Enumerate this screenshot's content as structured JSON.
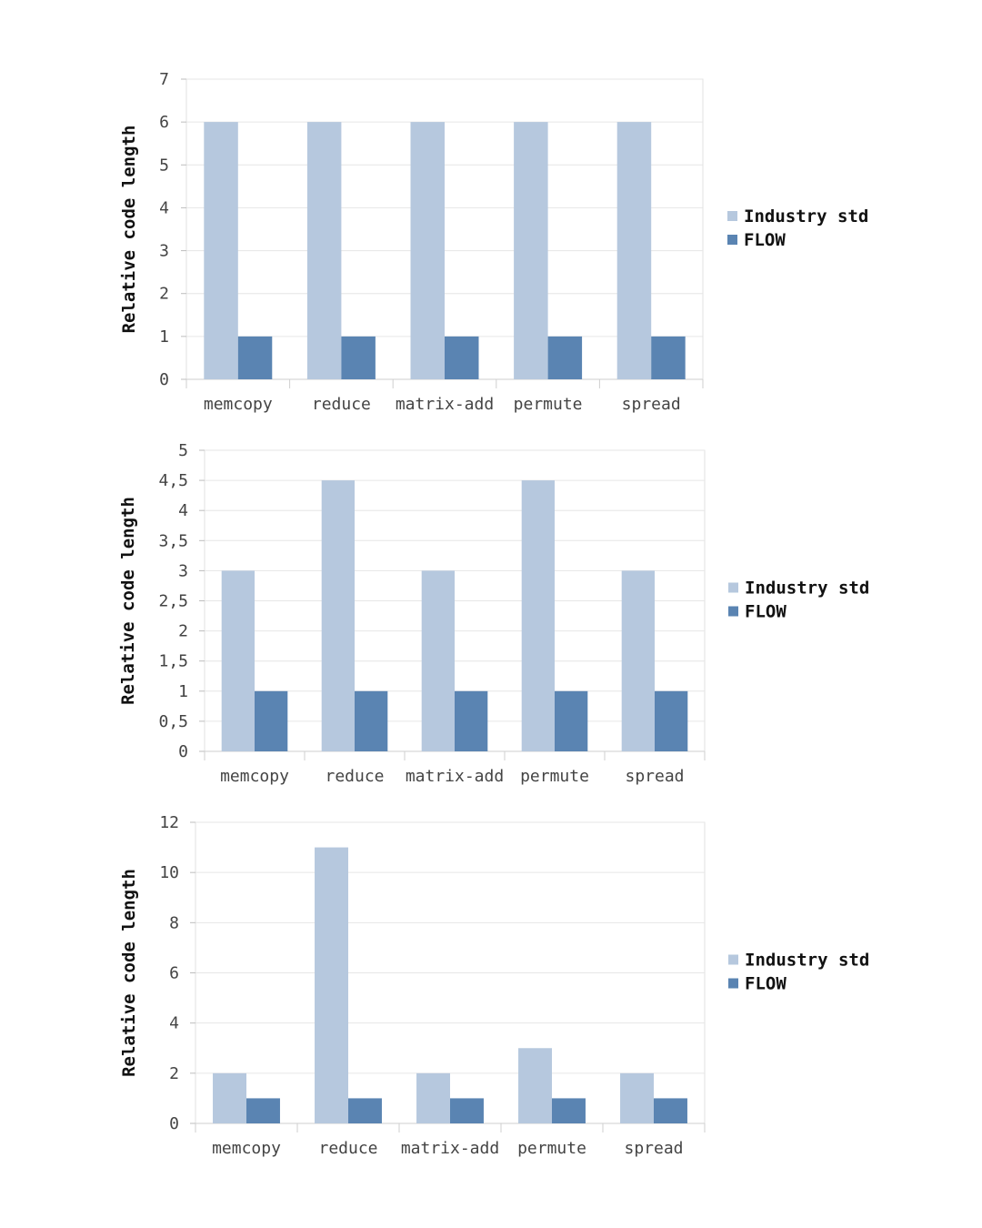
{
  "chart_data": [
    {
      "type": "bar",
      "ylabel": "Relative code length",
      "ylim": [
        0,
        7
      ],
      "yticks": [
        0,
        1,
        2,
        3,
        4,
        5,
        6,
        7
      ],
      "ytick_labels": [
        "0",
        "1",
        "2",
        "3",
        "4",
        "5",
        "6",
        "7"
      ],
      "grid": true,
      "legend_position": "right",
      "categories": [
        "memcopy",
        "reduce",
        "matrix-add",
        "permute",
        "spread"
      ],
      "series": [
        {
          "name": "Industry std",
          "color": "#b6c8de",
          "values": [
            6,
            6,
            6,
            6,
            6
          ]
        },
        {
          "name": "FLOW",
          "color": "#5a84b2",
          "values": [
            1,
            1,
            1,
            1,
            1
          ]
        }
      ]
    },
    {
      "type": "bar",
      "ylabel": "Relative code length",
      "ylim": [
        0,
        5
      ],
      "yticks": [
        0,
        0.5,
        1,
        1.5,
        2,
        2.5,
        3,
        3.5,
        4,
        4.5,
        5
      ],
      "ytick_labels": [
        "0",
        "0,5",
        "1",
        "1,5",
        "2",
        "2,5",
        "3",
        "3,5",
        "4",
        "4,5",
        "5"
      ],
      "grid": true,
      "legend_position": "right",
      "categories": [
        "memcopy",
        "reduce",
        "matrix-add",
        "permute",
        "spread"
      ],
      "series": [
        {
          "name": "Industry std",
          "color": "#b6c8de",
          "values": [
            3,
            4.5,
            3,
            4.5,
            3
          ]
        },
        {
          "name": "FLOW",
          "color": "#5a84b2",
          "values": [
            1,
            1,
            1,
            1,
            1
          ]
        }
      ]
    },
    {
      "type": "bar",
      "ylabel": "Relative code length",
      "ylim": [
        0,
        12
      ],
      "yticks": [
        0,
        2,
        4,
        6,
        8,
        10,
        12
      ],
      "ytick_labels": [
        "0",
        "2",
        "4",
        "6",
        "8",
        "10",
        "12"
      ],
      "grid": true,
      "legend_position": "right",
      "categories": [
        "memcopy",
        "reduce",
        "matrix-add",
        "permute",
        "spread"
      ],
      "series": [
        {
          "name": "Industry std",
          "color": "#b6c8de",
          "values": [
            2,
            11,
            2,
            3,
            2
          ]
        },
        {
          "name": "FLOW",
          "color": "#5a84b2",
          "values": [
            1,
            1,
            1,
            1,
            1
          ]
        }
      ]
    }
  ]
}
